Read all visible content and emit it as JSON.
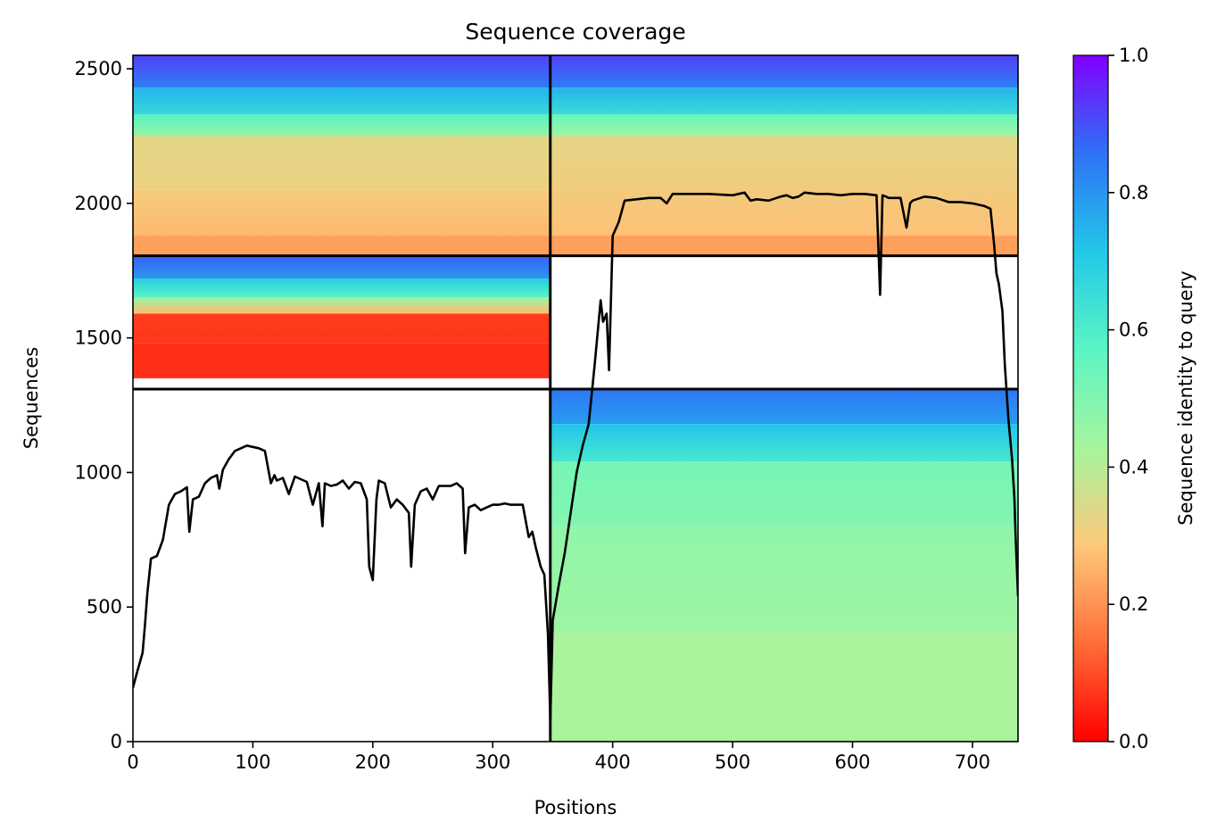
{
  "chart_data": {
    "type": "heatmap",
    "title": "Sequence coverage",
    "xlabel": "Positions",
    "ylabel": "Sequences",
    "colorbar_label": "Sequence identity to query",
    "colormap": "rainbow",
    "colormap_stops": [
      "#ff0000",
      "#ff6e38",
      "#fec87b",
      "#a6f59e",
      "#5bf5c4",
      "#22c8e8",
      "#2e72f6",
      "#8000ff"
    ],
    "xlim": [
      0,
      738
    ],
    "ylim": [
      0,
      2550
    ],
    "xticks": [
      0,
      100,
      200,
      300,
      400,
      500,
      600,
      700
    ],
    "yticks": [
      0,
      500,
      1000,
      1500,
      2000,
      2500
    ],
    "colorbar_range": [
      0,
      1
    ],
    "colorbar_ticks": [
      "0.0",
      "0.2",
      "0.4",
      "0.6",
      "0.8",
      "1.0"
    ],
    "separators": {
      "x": [
        348
      ],
      "y": [
        1310,
        1805
      ]
    },
    "blocks": [
      {
        "region": "chain-1 x chain-1",
        "x": [
          0,
          348
        ],
        "y": [
          1805,
          2550
        ],
        "bands": [
          {
            "y": [
              2430,
              2550
            ],
            "identity": 0.92
          },
          {
            "y": [
              2330,
              2430
            ],
            "identity": 0.75
          },
          {
            "y": [
              2250,
              2330
            ],
            "identity": 0.58
          },
          {
            "y": [
              2050,
              2250
            ],
            "identity": 0.33
          },
          {
            "y": [
              1880,
              2050
            ],
            "identity": 0.3
          },
          {
            "y": [
              1805,
              1880
            ],
            "identity": 0.22
          }
        ]
      },
      {
        "region": "chain-2 x chain-2",
        "x": [
          348,
          738
        ],
        "y": [
          1805,
          2550
        ],
        "bands": [
          {
            "y": [
              2430,
              2550
            ],
            "identity": 0.92
          },
          {
            "y": [
              2330,
              2430
            ],
            "identity": 0.75
          },
          {
            "y": [
              2250,
              2330
            ],
            "identity": 0.55
          },
          {
            "y": [
              1880,
              2250
            ],
            "identity": 0.33
          },
          {
            "y": [
              1805,
              1880
            ],
            "identity": 0.22
          }
        ]
      },
      {
        "region": "chain-1 paired",
        "x": [
          0,
          348
        ],
        "y": [
          1310,
          1805
        ],
        "bands": [
          {
            "y": [
              1720,
              1805
            ],
            "identity": 0.88
          },
          {
            "y": [
              1650,
              1720
            ],
            "identity": 0.7
          },
          {
            "y": [
              1590,
              1650
            ],
            "identity": 0.45
          },
          {
            "y": [
              1480,
              1590
            ],
            "identity": 0.08
          },
          {
            "y": [
              1350,
              1480
            ],
            "identity": 0.06
          }
        ]
      },
      {
        "region": "chain-2 paired",
        "x": [
          348,
          738
        ],
        "y": [
          0,
          1310
        ],
        "bands": [
          {
            "y": [
              1180,
              1310
            ],
            "identity": 0.85
          },
          {
            "y": [
              1040,
              1180
            ],
            "identity": 0.72
          },
          {
            "y": [
              800,
              1040
            ],
            "identity": 0.52
          },
          {
            "y": [
              400,
              800
            ],
            "identity": 0.47
          },
          {
            "y": [
              0,
              400
            ],
            "identity": 0.42
          }
        ]
      }
    ],
    "coverage_series": [
      {
        "name": "",
        "x": [
          0,
          3,
          8,
          10,
          12,
          15,
          20,
          25,
          30,
          35,
          40,
          45,
          47,
          50,
          55,
          60,
          65,
          70,
          72,
          75,
          80,
          85,
          90,
          95,
          100,
          105,
          110,
          115,
          118,
          120,
          125,
          130,
          135,
          140,
          145,
          150,
          155,
          158,
          160,
          165,
          170,
          175,
          180,
          185,
          190,
          195,
          197,
          200,
          203,
          205,
          210,
          215,
          220,
          225,
          230,
          232,
          235,
          240,
          245,
          250,
          255,
          260,
          265,
          270,
          275,
          277,
          280,
          285,
          290,
          295,
          300,
          305,
          310,
          315,
          320,
          325,
          330,
          333,
          336,
          340,
          343,
          346,
          348
        ],
        "y": [
          200,
          250,
          330,
          430,
          550,
          680,
          690,
          750,
          880,
          920,
          930,
          945,
          780,
          900,
          910,
          960,
          980,
          990,
          940,
          1010,
          1050,
          1080,
          1090,
          1100,
          1095,
          1090,
          1080,
          960,
          990,
          970,
          980,
          920,
          985,
          975,
          965,
          880,
          960,
          800,
          960,
          950,
          955,
          970,
          940,
          965,
          960,
          900,
          650,
          600,
          900,
          970,
          960,
          870,
          900,
          880,
          850,
          650,
          880,
          930,
          940,
          900,
          950,
          950,
          950,
          960,
          940,
          700,
          870,
          880,
          860,
          870,
          880,
          880,
          885,
          880,
          880,
          880,
          760,
          780,
          720,
          650,
          620,
          400,
          80
        ]
      },
      {
        "name": "",
        "x": [
          348,
          350,
          355,
          360,
          365,
          370,
          375,
          380,
          385,
          390,
          392,
          395,
          397,
          400,
          405,
          410,
          420,
          430,
          440,
          445,
          450,
          460,
          480,
          500,
          510,
          515,
          520,
          530,
          540,
          545,
          550,
          555,
          560,
          570,
          580,
          590,
          600,
          610,
          620,
          623,
          625,
          628,
          630,
          640,
          645,
          648,
          650,
          660,
          670,
          680,
          690,
          700,
          710,
          715,
          718,
          720,
          722,
          725,
          727,
          730,
          733,
          735,
          736,
          738
        ],
        "y": [
          80,
          450,
          580,
          700,
          850,
          1000,
          1100,
          1180,
          1400,
          1640,
          1560,
          1590,
          1380,
          1880,
          1930,
          2010,
          2015,
          2020,
          2020,
          2000,
          2035,
          2035,
          2035,
          2030,
          2040,
          2010,
          2015,
          2010,
          2025,
          2030,
          2020,
          2025,
          2040,
          2035,
          2035,
          2030,
          2035,
          2035,
          2030,
          1660,
          2030,
          2025,
          2020,
          2020,
          1910,
          2000,
          2010,
          2025,
          2020,
          2005,
          2005,
          2000,
          1990,
          1980,
          1850,
          1740,
          1700,
          1600,
          1400,
          1200,
          1050,
          900,
          760,
          540
        ]
      }
    ]
  }
}
